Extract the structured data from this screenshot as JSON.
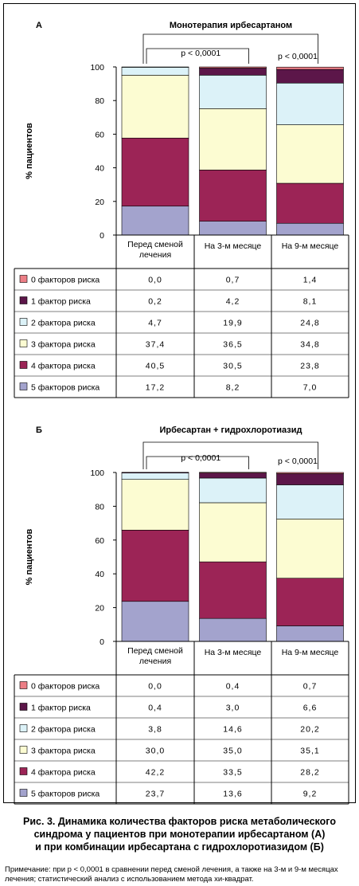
{
  "chart_data": [
    {
      "type": "bar",
      "stacked": true,
      "panel_label": "А",
      "title": "Монотерапия ирбесартаном",
      "ylabel": "% пациентов",
      "ylim": [
        0,
        100
      ],
      "yticks": [
        "0",
        "20",
        "40",
        "60",
        "80",
        "100"
      ],
      "categories": [
        "Перед сменой лечения",
        "На 3-м месяце",
        "На 9-м месяце"
      ],
      "series": [
        {
          "name": "5 факторов риска",
          "color": "#a3a3cd",
          "values": [
            17.2,
            8.2,
            7.0
          ],
          "labels": [
            "17,2",
            "8,2",
            "7,0"
          ]
        },
        {
          "name": "4 фактора риска",
          "color": "#9c2456",
          "values": [
            40.5,
            30.5,
            23.8
          ],
          "labels": [
            "40,5",
            "30,5",
            "23,8"
          ]
        },
        {
          "name": "3 фактора риска",
          "color": "#fcfcd2",
          "values": [
            37.4,
            36.5,
            34.8
          ],
          "labels": [
            "37,4",
            "36,5",
            "34,8"
          ]
        },
        {
          "name": "2 фактора риска",
          "color": "#dcf2f8",
          "values": [
            4.7,
            19.9,
            24.8
          ],
          "labels": [
            "4,7",
            "19,9",
            "24,8"
          ]
        },
        {
          "name": "1 фактор риска",
          "color": "#5c1649",
          "values": [
            0.2,
            4.2,
            8.1
          ],
          "labels": [
            "0,2",
            "4,2",
            "8,1"
          ]
        },
        {
          "name": "0 факторов риска",
          "color": "#ec7e86",
          "values": [
            0.0,
            0.7,
            1.4
          ],
          "labels": [
            "0,0",
            "0,7",
            "1,4"
          ]
        }
      ],
      "annotations": [
        "p < 0,0001",
        "p < 0,0001"
      ]
    },
    {
      "type": "bar",
      "stacked": true,
      "panel_label": "Б",
      "title": "Ирбесартан + гидрохлоротиазид",
      "ylabel": "% пациентов",
      "ylim": [
        0,
        100
      ],
      "yticks": [
        "0",
        "20",
        "40",
        "60",
        "80",
        "100"
      ],
      "categories": [
        "Перед сменой лечения",
        "На 3-м месяце",
        "На 9-м месяце"
      ],
      "series": [
        {
          "name": "5 факторов риска",
          "color": "#a3a3cd",
          "values": [
            23.7,
            13.6,
            9.2
          ],
          "labels": [
            "23,7",
            "13,6",
            "9,2"
          ]
        },
        {
          "name": "4 фактора риска",
          "color": "#9c2456",
          "values": [
            42.2,
            33.5,
            28.2
          ],
          "labels": [
            "42,2",
            "33,5",
            "28,2"
          ]
        },
        {
          "name": "3 фактора риска",
          "color": "#fcfcd2",
          "values": [
            30.0,
            35.0,
            35.1
          ],
          "labels": [
            "30,0",
            "35,0",
            "35,1"
          ]
        },
        {
          "name": "2 фактора риска",
          "color": "#dcf2f8",
          "values": [
            3.8,
            14.6,
            20.2
          ],
          "labels": [
            "3,8",
            "14,6",
            "20,2"
          ]
        },
        {
          "name": "1 фактор риска",
          "color": "#5c1649",
          "values": [
            0.4,
            3.0,
            6.6
          ],
          "labels": [
            "0,4",
            "3,0",
            "6,6"
          ]
        },
        {
          "name": "0 факторов риска",
          "color": "#ec7e86",
          "values": [
            0.0,
            0.4,
            0.7
          ],
          "labels": [
            "0,0",
            "0,4",
            "0,7"
          ]
        }
      ],
      "annotations": [
        "p < 0,0001",
        "p < 0,0001"
      ]
    }
  ],
  "caption": {
    "line1": "Рис. 3. Динамика количества факторов риска метаболического",
    "line2": "синдрома у пациентов при монотерапии ирбесартаном (А)",
    "line3": "и при комбинации ирбесартана с гидрохлоротиазидом (Б)"
  },
  "note": "Примечание: при p < 0,0001 в сравнении перед сменой лечения, а также на 3-м и 9-м месяцах лечения; статистический анализ с использованием метода хи-квадрат."
}
